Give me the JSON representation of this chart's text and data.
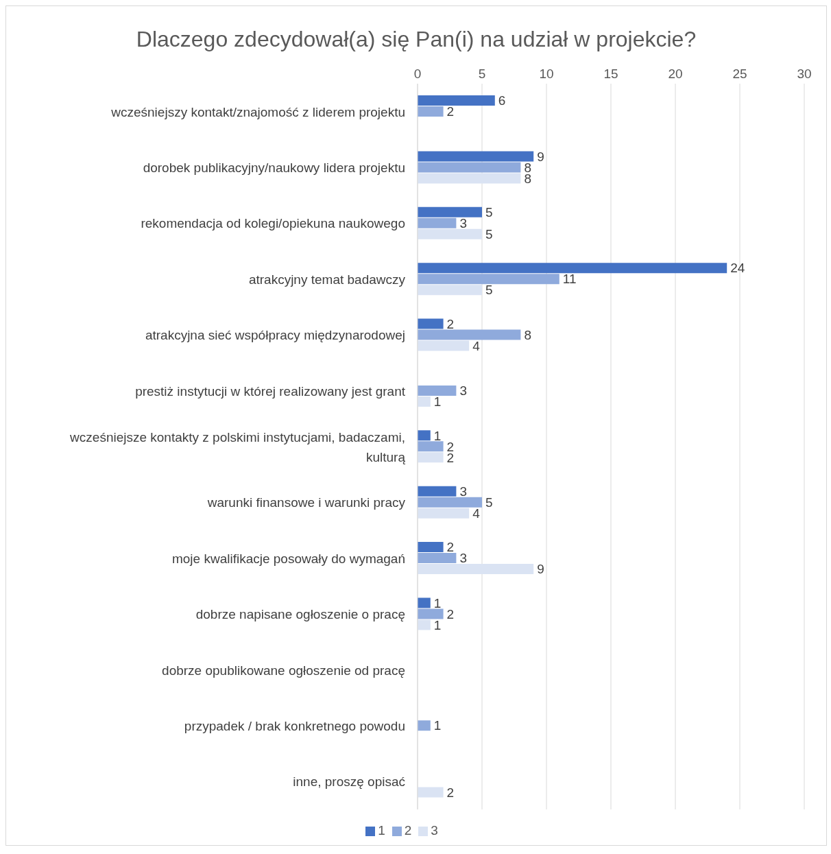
{
  "chart_data": {
    "type": "bar",
    "orientation": "horizontal",
    "title": "Dlaczego zdecydował(a) się Pan(i) na udział w projekcie?",
    "categories": [
      "wcześniejszy kontakt/znajomość z liderem projektu",
      "dorobek publikacyjny/naukowy lidera projektu",
      "rekomendacja od kolegi/opiekuna naukowego",
      "atrakcyjny temat badawczy",
      "atrakcyjna sieć współpracy międzynarodowej",
      "prestiż instytucji w której realizowany jest grant",
      "wcześniejsze kontakty z polskimi instytucjami, badaczami, kulturą",
      "warunki finansowe i warunki pracy",
      "moje kwalifikacje posowały do wymagań",
      "dobrze napisane ogłoszenie o pracę",
      "dobrze opublikowane ogłoszenie od pracę",
      "przypadek / brak konkretnego powodu",
      "inne, proszę opisać"
    ],
    "series": [
      {
        "name": "1",
        "color": "#4472c4",
        "values": [
          6,
          9,
          5,
          24,
          2,
          null,
          1,
          3,
          2,
          1,
          null,
          null,
          null
        ]
      },
      {
        "name": "2",
        "color": "#8faadc",
        "values": [
          2,
          8,
          3,
          11,
          8,
          3,
          2,
          5,
          3,
          2,
          null,
          1,
          null
        ]
      },
      {
        "name": "3",
        "color": "#dae3f3",
        "values": [
          null,
          8,
          5,
          5,
          4,
          1,
          2,
          4,
          9,
          1,
          null,
          null,
          2
        ]
      }
    ],
    "xlim": [
      0,
      30
    ],
    "xticks": [
      0,
      5,
      10,
      15,
      20,
      25,
      30
    ],
    "grid": "x",
    "legend": "bottom",
    "data_labels": true
  }
}
